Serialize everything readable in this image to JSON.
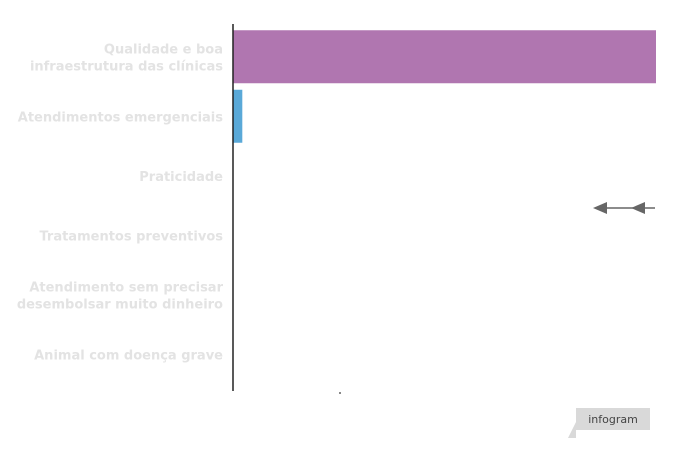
{
  "chart_data": {
    "type": "bar",
    "orientation": "horizontal",
    "categories": [
      [
        "Qualidade e boa",
        "infraestrutura das clínicas"
      ],
      [
        "Atendimentos emergenciais"
      ],
      [
        "Praticidade"
      ],
      [
        "Tratamentos preventivos"
      ],
      [
        "Atendimento sem precisar",
        "desembolsar muito dinheiro"
      ],
      [
        "Animal com doença grave"
      ]
    ],
    "values": [
      100,
      2.2,
      0,
      0,
      0,
      0
    ],
    "colors": [
      "#b076b0",
      "#5aa9d8",
      "#b076b0",
      "#b076b0",
      "#b076b0",
      "#b076b0"
    ],
    "xlim": [
      0,
      100
    ],
    "grid": false,
    "legend": "none",
    "title": "",
    "xlabel": "",
    "ylabel": ""
  },
  "credit": {
    "label": "infogram"
  },
  "colors": {
    "axis": "#222222",
    "label": "#e3e3e3",
    "arrow": "#666666",
    "credit_bg": "#d9d9d9"
  }
}
